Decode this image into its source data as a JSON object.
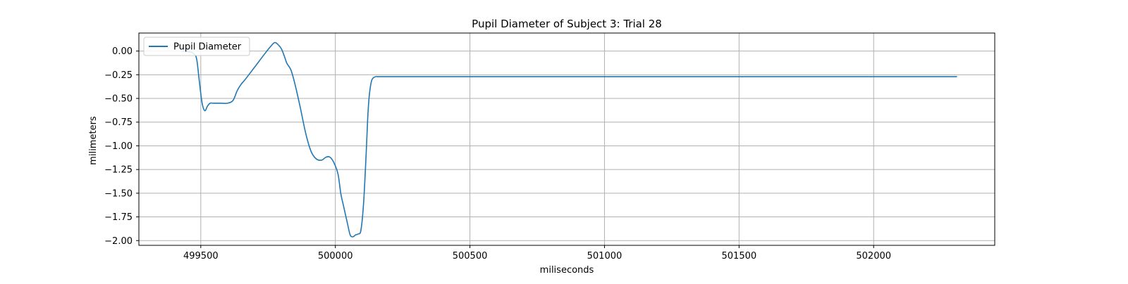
{
  "chart_data": {
    "type": "line",
    "title": "Pupil Diameter of Subject 3: Trial 28",
    "xlabel": "miliseconds",
    "ylabel": "milimeters",
    "xlim": [
      499270,
      502450
    ],
    "ylim": [
      -2.05,
      0.19
    ],
    "xticks": [
      499500,
      500000,
      500500,
      501000,
      501500,
      502000
    ],
    "yticks": [
      0.0,
      -0.25,
      -0.5,
      -0.75,
      -1.0,
      -1.25,
      -1.5,
      -1.75,
      -2.0
    ],
    "xtick_labels": [
      "499500",
      "500000",
      "500500",
      "501000",
      "501500",
      "502000"
    ],
    "ytick_labels": [
      "0.00",
      "−0.25",
      "−0.50",
      "−0.75",
      "−1.00",
      "−1.25",
      "−1.50",
      "−1.75",
      "−2.00"
    ],
    "grid": true,
    "legend_position": "upper left",
    "series": [
      {
        "name": "Pupil Diameter",
        "color": "#1f77b4",
        "x": [
          499430,
          499460,
          499475,
          499485,
          499495,
          499505,
          499515,
          499525,
          499535,
          499545,
          499555,
          499575,
          499600,
          499620,
          499635,
          499650,
          499665,
          499700,
          499740,
          499760,
          499775,
          499790,
          499800,
          499810,
          499820,
          499835,
          499850,
          499870,
          499890,
          499910,
          499930,
          499950,
          499965,
          499980,
          499995,
          500010,
          500020,
          500030,
          500045,
          500055,
          500065,
          500075,
          500085,
          500095,
          500105,
          500115,
          500120,
          500125,
          500130,
          500135,
          500140,
          500150,
          500160,
          500200,
          500300,
          500500,
          501000,
          501500,
          502000,
          502310
        ],
        "y": [
          0.0,
          -0.01,
          -0.03,
          -0.09,
          -0.33,
          -0.55,
          -0.63,
          -0.58,
          -0.55,
          -0.55,
          -0.55,
          -0.55,
          -0.55,
          -0.52,
          -0.42,
          -0.35,
          -0.3,
          -0.17,
          -0.02,
          0.05,
          0.09,
          0.06,
          0.02,
          -0.05,
          -0.13,
          -0.2,
          -0.35,
          -0.6,
          -0.87,
          -1.06,
          -1.14,
          -1.15,
          -1.12,
          -1.12,
          -1.18,
          -1.3,
          -1.5,
          -1.63,
          -1.82,
          -1.94,
          -1.96,
          -1.94,
          -1.93,
          -1.89,
          -1.6,
          -1.05,
          -0.72,
          -0.5,
          -0.38,
          -0.31,
          -0.285,
          -0.27,
          -0.27,
          -0.27,
          -0.27,
          -0.27,
          -0.27,
          -0.27,
          -0.27,
          -0.27
        ]
      }
    ]
  }
}
